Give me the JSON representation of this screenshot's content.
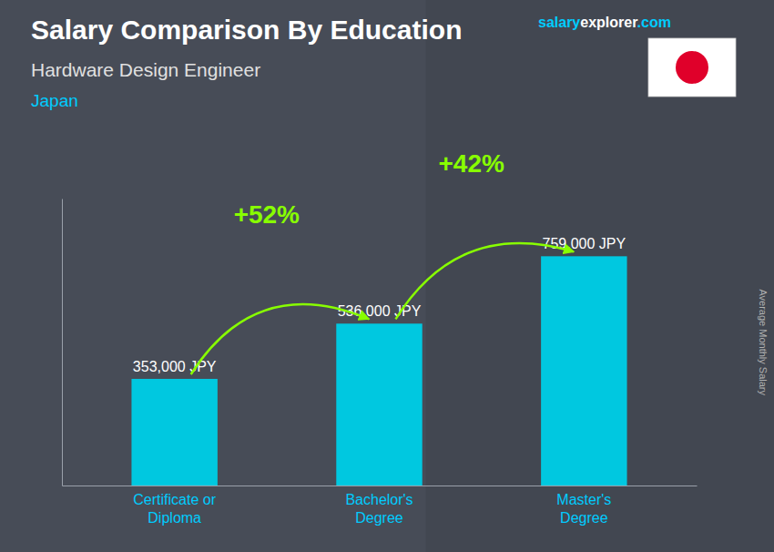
{
  "chart_data": {
    "type": "bar",
    "title": "Salary Comparison By Education",
    "subtitle": "Hardware Design Engineer",
    "country": "Japan",
    "watermark": [
      "salary",
      "explorer",
      ".com"
    ],
    "ylabel": "Average Monthly Salary",
    "categories": [
      "Certificate or\nDiploma",
      "Bachelor's\nDegree",
      "Master's\nDegree"
    ],
    "values": [
      353000,
      536000,
      759000
    ],
    "value_labels": [
      "353,000 JPY",
      "536,000 JPY",
      "759,000 JPY"
    ],
    "data_labels": true,
    "annotations": [
      "+52%",
      "+42%"
    ],
    "color": "#00c8e0",
    "ylim": [
      0,
      950000
    ],
    "tick_labels": "x",
    "grid": false
  }
}
